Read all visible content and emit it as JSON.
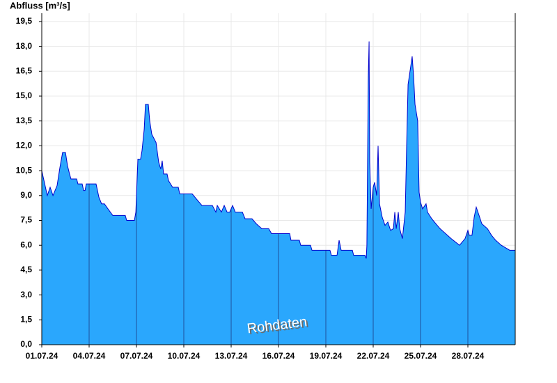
{
  "chart_data": {
    "type": "area",
    "ylabel": "Abfluss [m³/s]",
    "annotation": "Rohdaten",
    "color": "#2aa7fd",
    "line_color": "#0000cc",
    "grid": true,
    "xlim": [
      0,
      30
    ],
    "ylim": [
      0,
      20
    ],
    "xticks": [
      {
        "value": 0,
        "label": "01.07.24"
      },
      {
        "value": 3,
        "label": "04.07.24"
      },
      {
        "value": 6,
        "label": "07.07.24"
      },
      {
        "value": 9,
        "label": "10.07.24"
      },
      {
        "value": 12,
        "label": "13.07.24"
      },
      {
        "value": 15,
        "label": "16.07.24"
      },
      {
        "value": 18,
        "label": "19.07.24"
      },
      {
        "value": 21,
        "label": "22.07.24"
      },
      {
        "value": 24,
        "label": "25.07.24"
      },
      {
        "value": 27,
        "label": "28.07.24"
      }
    ],
    "yticks": [
      {
        "value": 0,
        "label": "0,0"
      },
      {
        "value": 1.5,
        "label": "1,5"
      },
      {
        "value": 3,
        "label": "3,0"
      },
      {
        "value": 4.5,
        "label": "4,5"
      },
      {
        "value": 6,
        "label": "6,0"
      },
      {
        "value": 7.5,
        "label": "7,5"
      },
      {
        "value": 9,
        "label": "9,0"
      },
      {
        "value": 10.5,
        "label": "10,5"
      },
      {
        "value": 12,
        "label": "12,0"
      },
      {
        "value": 13.5,
        "label": "13,5"
      },
      {
        "value": 15,
        "label": "15,0"
      },
      {
        "value": 16.5,
        "label": "16,5"
      },
      {
        "value": 18,
        "label": "18,0"
      },
      {
        "value": 19.5,
        "label": "19,5"
      }
    ],
    "x": [
      0,
      0.35,
      0.53,
      0.71,
      0.97,
      1.15,
      1.32,
      1.5,
      1.63,
      1.76,
      1.85,
      2.21,
      2.29,
      2.56,
      2.65,
      2.74,
      2.82,
      3.44,
      3.53,
      3.62,
      3.79,
      3.97,
      4.19,
      4.5,
      5.29,
      5.38,
      5.87,
      5.96,
      6.09,
      6.26,
      6.35,
      6.49,
      6.57,
      6.75,
      6.84,
      6.97,
      7.24,
      7.41,
      7.54,
      7.63,
      7.72,
      7.94,
      8.03,
      8.29,
      8.65,
      8.74,
      9.53,
      9.88,
      10.15,
      10.81,
      11.03,
      11.12,
      11.38,
      11.56,
      11.74,
      11.91,
      12.09,
      12.26,
      12.71,
      12.88,
      13.32,
      13.59,
      13.94,
      14.38,
      14.56,
      15.71,
      15.79,
      16.32,
      16.41,
      17.03,
      17.12,
      18.26,
      18.35,
      18.71,
      18.84,
      18.97,
      19.68,
      19.76,
      20.47,
      20.56,
      20.6,
      20.69,
      20.74,
      20.78,
      20.87,
      21.0,
      21.09,
      21.22,
      21.31,
      21.4,
      21.57,
      21.75,
      21.93,
      22.1,
      22.28,
      22.37,
      22.46,
      22.59,
      22.68,
      22.85,
      23.03,
      23.12,
      23.21,
      23.38,
      23.47,
      23.56,
      23.65,
      23.82,
      23.91,
      24.0,
      24.13,
      24.35,
      24.44,
      24.71,
      24.97,
      25.24,
      25.59,
      25.94,
      26.47,
      26.82,
      27.0,
      27.09,
      27.26,
      27.4,
      27.53,
      27.71,
      27.88,
      28.24,
      28.5,
      28.76,
      29.12,
      29.65,
      30
    ],
    "values": [
      10.5,
      9.0,
      9.5,
      9.0,
      9.6,
      10.7,
      11.6,
      11.6,
      10.8,
      10.3,
      10.0,
      10.0,
      9.7,
      9.7,
      9.3,
      9.3,
      9.7,
      9.7,
      9.3,
      8.9,
      8.5,
      8.5,
      8.2,
      7.8,
      7.8,
      7.5,
      7.5,
      8.0,
      11.2,
      11.2,
      11.7,
      13.0,
      14.5,
      14.5,
      13.5,
      12.7,
      12.2,
      11.0,
      10.6,
      11.1,
      10.3,
      10.3,
      9.9,
      9.5,
      9.5,
      9.1,
      9.1,
      8.7,
      8.4,
      8.4,
      8.0,
      8.4,
      8.0,
      8.4,
      8.0,
      8.0,
      8.4,
      8.0,
      8.0,
      7.6,
      7.6,
      7.3,
      7.0,
      7.0,
      6.7,
      6.7,
      6.3,
      6.3,
      6.0,
      6.0,
      5.7,
      5.7,
      5.4,
      5.4,
      6.3,
      5.7,
      5.7,
      5.4,
      5.4,
      5.2,
      6.0,
      16.2,
      18.3,
      11.0,
      8.2,
      9.5,
      9.8,
      9.0,
      12.0,
      8.5,
      7.7,
      7.2,
      7.4,
      6.9,
      7.0,
      8.0,
      7.0,
      8.0,
      7.0,
      6.4,
      8.0,
      12.0,
      15.7,
      16.8,
      17.4,
      16.2,
      14.5,
      13.5,
      9.2,
      8.6,
      8.2,
      8.5,
      8.0,
      7.6,
      7.3,
      7.0,
      6.7,
      6.4,
      6.0,
      6.4,
      6.9,
      6.6,
      6.6,
      7.7,
      8.3,
      7.8,
      7.3,
      7.0,
      6.6,
      6.3,
      6.0,
      5.7,
      5.7
    ]
  }
}
